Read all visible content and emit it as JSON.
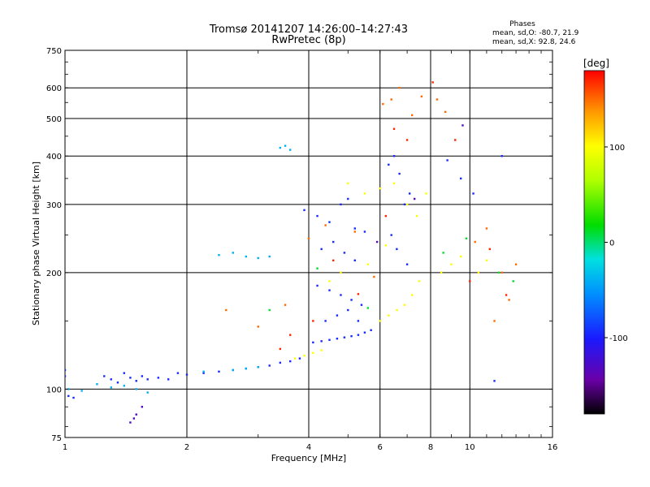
{
  "chart_data": {
    "type": "scatter",
    "title": "Tromsø 20141207 14:26:00–14:27:43",
    "subtitle": "RwPretec (8p)",
    "xlabel": "Frequency [MHz]",
    "ylabel": "Stationary phase Virtual Height [km]",
    "x_scale": "log",
    "y_scale": "log",
    "xlim": [
      1,
      16
    ],
    "ylim": [
      75,
      750
    ],
    "x_ticks": [
      1,
      2,
      4,
      6,
      8,
      10,
      16
    ],
    "y_ticks": [
      75,
      100,
      200,
      300,
      400,
      500,
      600,
      750
    ],
    "grid": true,
    "phases_box": {
      "title": "Phases",
      "line_o": "mean, sd,O: -80.7, 21.9",
      "line_x": "mean, sd,X:  92.8, 24.6"
    },
    "colorbar": {
      "label": "[deg]",
      "range": [
        -180,
        180
      ],
      "ticks": [
        100,
        0,
        -100
      ],
      "colormap": "rainbow (black → violet → blue → cyan → green → yellow → orange → red)"
    },
    "series": [
      {
        "phase_deg": -95,
        "points": [
          [
            1.0,
            108
          ],
          [
            1.0,
            112
          ],
          [
            1.02,
            96
          ],
          [
            1.05,
            95
          ],
          [
            1.25,
            108
          ],
          [
            1.3,
            106
          ],
          [
            1.35,
            104
          ],
          [
            1.4,
            110
          ],
          [
            1.45,
            107
          ],
          [
            1.5,
            105
          ],
          [
            1.55,
            108
          ],
          [
            1.6,
            106
          ],
          [
            1.7,
            107
          ],
          [
            1.8,
            106
          ],
          [
            1.9,
            110
          ],
          [
            2.0,
            109
          ],
          [
            2.2,
            110
          ],
          [
            2.4,
            111
          ],
          [
            2.6,
            112
          ],
          [
            2.8,
            113
          ],
          [
            3.0,
            114
          ],
          [
            3.2,
            115
          ],
          [
            3.4,
            117
          ],
          [
            3.6,
            118
          ],
          [
            3.8,
            120
          ],
          [
            4.1,
            132
          ],
          [
            4.3,
            133
          ],
          [
            4.5,
            134
          ],
          [
            4.7,
            135
          ],
          [
            4.9,
            136
          ],
          [
            5.1,
            137
          ],
          [
            5.3,
            138
          ],
          [
            5.5,
            140
          ],
          [
            5.7,
            142
          ],
          [
            3.9,
            290
          ],
          [
            4.2,
            280
          ],
          [
            4.5,
            270
          ],
          [
            4.8,
            300
          ],
          [
            5.0,
            310
          ],
          [
            5.2,
            260
          ],
          [
            5.5,
            255
          ],
          [
            4.3,
            230
          ],
          [
            4.6,
            240
          ],
          [
            4.9,
            225
          ],
          [
            5.2,
            215
          ],
          [
            4.2,
            185
          ],
          [
            4.5,
            180
          ],
          [
            4.8,
            175
          ],
          [
            5.1,
            170
          ],
          [
            5.4,
            165
          ],
          [
            4.4,
            150
          ],
          [
            4.7,
            155
          ],
          [
            5.0,
            160
          ],
          [
            5.3,
            150
          ],
          [
            6.3,
            380
          ],
          [
            6.5,
            400
          ],
          [
            6.7,
            360
          ],
          [
            6.9,
            300
          ],
          [
            7.1,
            320
          ],
          [
            6.4,
            250
          ],
          [
            6.6,
            230
          ],
          [
            7.0,
            210
          ],
          [
            8.8,
            390
          ],
          [
            9.5,
            350
          ],
          [
            10.2,
            320
          ],
          [
            11.5,
            105
          ],
          [
            12.0,
            400
          ]
        ]
      },
      {
        "phase_deg": -40,
        "points": [
          [
            1.02,
            100
          ],
          [
            1.1,
            99
          ],
          [
            1.2,
            103
          ],
          [
            1.3,
            101
          ],
          [
            1.4,
            102
          ],
          [
            1.5,
            100
          ],
          [
            2.6,
            112
          ],
          [
            2.8,
            113
          ],
          [
            3.0,
            114
          ],
          [
            2.4,
            222
          ],
          [
            2.6,
            225
          ],
          [
            2.8,
            220
          ],
          [
            3.0,
            218
          ],
          [
            3.2,
            220
          ],
          [
            3.4,
            420
          ],
          [
            3.5,
            425
          ],
          [
            3.6,
            415
          ],
          [
            1.6,
            98
          ],
          [
            2.2,
            111
          ]
        ]
      },
      {
        "phase_deg": 100,
        "points": [
          [
            3.7,
            120
          ],
          [
            3.9,
            122
          ],
          [
            4.1,
            124
          ],
          [
            4.3,
            126
          ],
          [
            6.0,
            150
          ],
          [
            6.3,
            155
          ],
          [
            6.6,
            160
          ],
          [
            6.9,
            165
          ],
          [
            7.2,
            175
          ],
          [
            7.5,
            190
          ],
          [
            5.0,
            340
          ],
          [
            5.5,
            320
          ],
          [
            6.0,
            330
          ],
          [
            6.5,
            340
          ],
          [
            7.0,
            300
          ],
          [
            7.4,
            280
          ],
          [
            7.8,
            320
          ],
          [
            8.5,
            200
          ],
          [
            9.0,
            210
          ],
          [
            9.5,
            220
          ],
          [
            10.5,
            200
          ],
          [
            11.0,
            215
          ],
          [
            4.5,
            190
          ],
          [
            4.8,
            200
          ],
          [
            5.6,
            210
          ],
          [
            6.2,
            235
          ]
        ]
      },
      {
        "phase_deg": 150,
        "points": [
          [
            2.5,
            160
          ],
          [
            3.0,
            145
          ],
          [
            3.5,
            165
          ],
          [
            4.0,
            245
          ],
          [
            4.4,
            265
          ],
          [
            5.2,
            255
          ],
          [
            5.8,
            195
          ],
          [
            6.1,
            545
          ],
          [
            6.4,
            560
          ],
          [
            6.7,
            600
          ],
          [
            7.2,
            510
          ],
          [
            7.6,
            570
          ],
          [
            8.3,
            560
          ],
          [
            8.7,
            520
          ],
          [
            10.3,
            240
          ],
          [
            11.0,
            260
          ],
          [
            12.0,
            200
          ],
          [
            13.0,
            210
          ],
          [
            11.5,
            150
          ],
          [
            12.5,
            170
          ]
        ]
      },
      {
        "phase_deg": 170,
        "points": [
          [
            3.4,
            127
          ],
          [
            3.6,
            138
          ],
          [
            4.1,
            150
          ],
          [
            4.6,
            215
          ],
          [
            5.3,
            176
          ],
          [
            6.2,
            280
          ],
          [
            6.5,
            470
          ],
          [
            7.0,
            440
          ],
          [
            8.1,
            620
          ],
          [
            9.2,
            440
          ],
          [
            10.0,
            190
          ],
          [
            11.2,
            230
          ],
          [
            12.3,
            175
          ]
        ]
      },
      {
        "phase_deg": 10,
        "points": [
          [
            3.2,
            160
          ],
          [
            4.2,
            205
          ],
          [
            5.6,
            162
          ],
          [
            8.6,
            225
          ],
          [
            9.8,
            245
          ],
          [
            11.8,
            200
          ],
          [
            12.8,
            190
          ]
        ]
      },
      {
        "phase_deg": -130,
        "points": [
          [
            1.45,
            82
          ],
          [
            1.48,
            84
          ],
          [
            1.5,
            86
          ],
          [
            1.55,
            90
          ],
          [
            5.9,
            240
          ],
          [
            7.3,
            310
          ],
          [
            9.6,
            480
          ]
        ]
      }
    ]
  }
}
